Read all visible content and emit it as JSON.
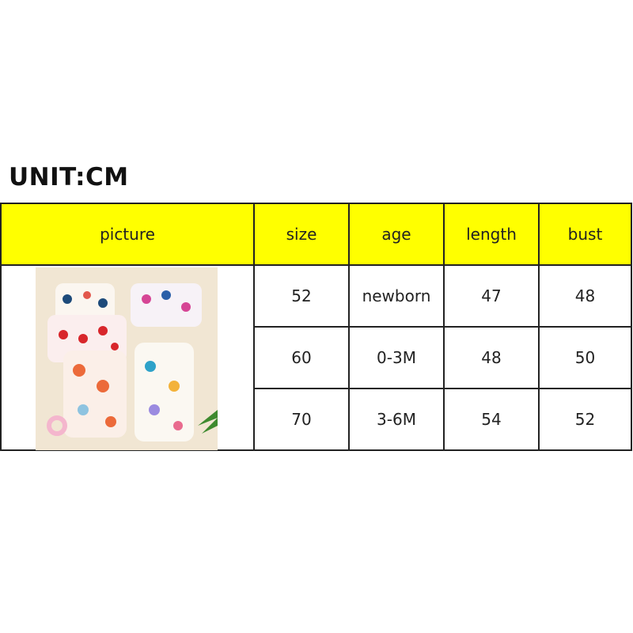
{
  "title": "UNIT:CM",
  "table": {
    "headers": [
      "picture",
      "size",
      "age",
      "length",
      "bust"
    ],
    "rows": [
      {
        "size": "52",
        "age": "newborn",
        "length": "47",
        "bust": "48"
      },
      {
        "size": "60",
        "age": "0-3M",
        "length": "48",
        "bust": "50"
      },
      {
        "size": "70",
        "age": "3-6M",
        "length": "54",
        "bust": "52"
      }
    ]
  },
  "colors": {
    "header_bg": "#ffff00",
    "border": "#222222",
    "photo_bg": "#f1e6d3"
  }
}
